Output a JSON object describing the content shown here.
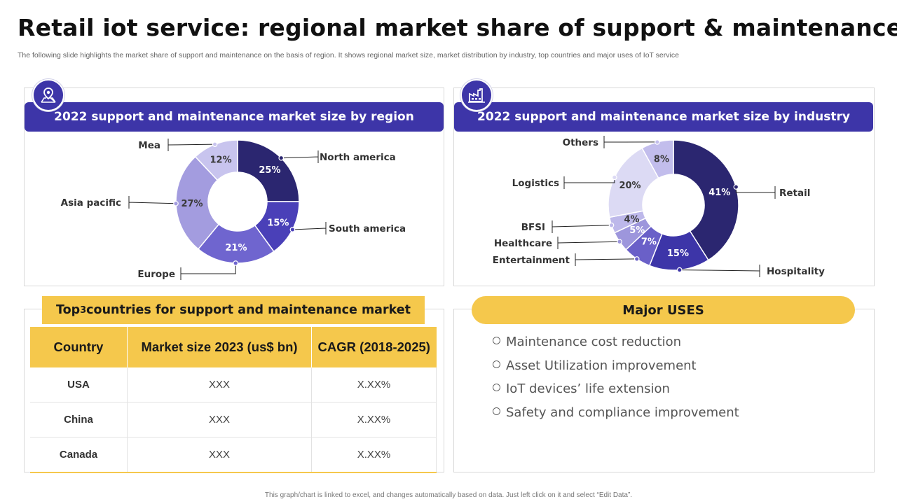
{
  "title": "Retail iot service: regional market share of support & maintenance",
  "subtitle": "The following slide highlights the market share of support and maintenance on the basis of region. It shows regional market size, market distribution by industry, top countries and major uses of IoT service",
  "icons": {
    "region": "map-pin-icon",
    "industry": "factory-icon"
  },
  "colors": {
    "band": "#3d35a8",
    "yellow": "#f5c84c"
  },
  "chart_data": [
    {
      "type": "pie",
      "title": "2022 support and maintenance market size by region",
      "donut": true,
      "categories": [
        "North america",
        "South america",
        "Europe",
        "Asia pacific",
        "Mea"
      ],
      "values": [
        25,
        15,
        21,
        27,
        12
      ],
      "value_labels": [
        "25%",
        "15%",
        "21%",
        "27%",
        "12%"
      ],
      "colors": [
        "#2b2670",
        "#4a40b8",
        "#6f65cf",
        "#a39cdf",
        "#c8c4ee"
      ]
    },
    {
      "type": "pie",
      "title": "2022 support and maintenance market size by industry",
      "donut": true,
      "categories": [
        "Retail",
        "Hospitality",
        "Entertainment",
        "Healthcare",
        "BFSI",
        "Logistics",
        "Others"
      ],
      "values": [
        41,
        15,
        7,
        5,
        4,
        20,
        8
      ],
      "value_labels": [
        "41%",
        "15%",
        "7%",
        "5%",
        "4%",
        "20%",
        "8%"
      ],
      "colors": [
        "#2b2670",
        "#3d35a8",
        "#6a60c8",
        "#9d96dc",
        "#bdb8ea",
        "#dcdaf4",
        "#c2bdec"
      ]
    }
  ],
  "table": {
    "title_prefix": "Top ",
    "title_num": "3",
    "title_suffix": " countries for support and maintenance market",
    "headers": [
      "Country",
      "Market size 2023 (us$ bn)",
      "CAGR (2018-2025)"
    ],
    "rows": [
      [
        "USA",
        "XXX",
        "X.XX%"
      ],
      [
        "China",
        "XXX",
        "X.XX%"
      ],
      [
        "Canada",
        "XXX",
        "X.XX%"
      ]
    ]
  },
  "uses": {
    "title": "Major USES",
    "items": [
      "Maintenance cost reduction",
      "Asset Utilization improvement",
      "IoT devices’ life extension",
      "Safety and compliance improvement"
    ]
  },
  "footer": "This graph/chart is linked to excel, and changes automatically based on data. Just left click on it and select “Edit Data”."
}
